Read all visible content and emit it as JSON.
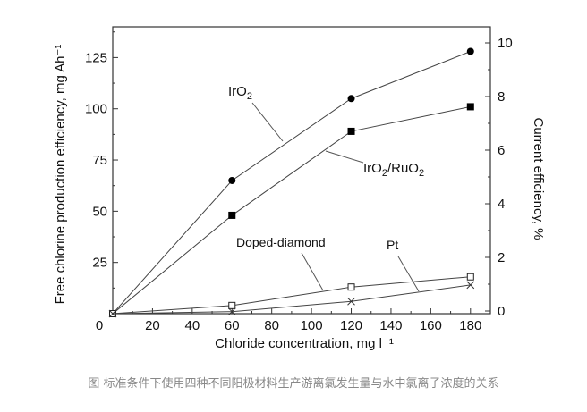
{
  "chart_data": {
    "type": "line",
    "xlabel": "Chloride concentration, mg l⁻¹",
    "ylabel": "Free chlorine production efficiency, mg Ah⁻¹",
    "y2label": "Current efficiency, %",
    "xlim": [
      0,
      190
    ],
    "ylim": [
      0,
      140
    ],
    "y2lim": [
      0,
      10.6
    ],
    "xticks": [
      0,
      20,
      40,
      60,
      80,
      100,
      120,
      140,
      160,
      180
    ],
    "yticks": [
      25,
      50,
      75,
      100,
      125
    ],
    "y2ticks": [
      0,
      2,
      4,
      6,
      8,
      10
    ],
    "grid": false,
    "series": [
      {
        "name": "IrO2",
        "label_main": "IrO",
        "label_sub": "2",
        "marker": "filled-circle",
        "x": [
          0,
          60,
          120,
          180
        ],
        "y": [
          0,
          65,
          105,
          128
        ]
      },
      {
        "name": "IrO2/RuO2",
        "label_main": "IrO",
        "label_sub": "2",
        "label_main2": "/RuO",
        "label_sub2": "2",
        "marker": "filled-square",
        "x": [
          0,
          60,
          120,
          180
        ],
        "y": [
          0,
          48,
          89,
          101
        ]
      },
      {
        "name": "Doped-diamond",
        "marker": "open-square",
        "x": [
          0,
          60,
          120,
          180
        ],
        "y": [
          0,
          4,
          13,
          18
        ]
      },
      {
        "name": "Pt",
        "marker": "cross",
        "x": [
          0,
          60,
          120,
          180
        ],
        "y": [
          0,
          1,
          6,
          14
        ]
      }
    ]
  },
  "caption": "图 标准条件下使用四种不同阳极材料生产游离氯发生量与水中氯离子浓度的关系"
}
